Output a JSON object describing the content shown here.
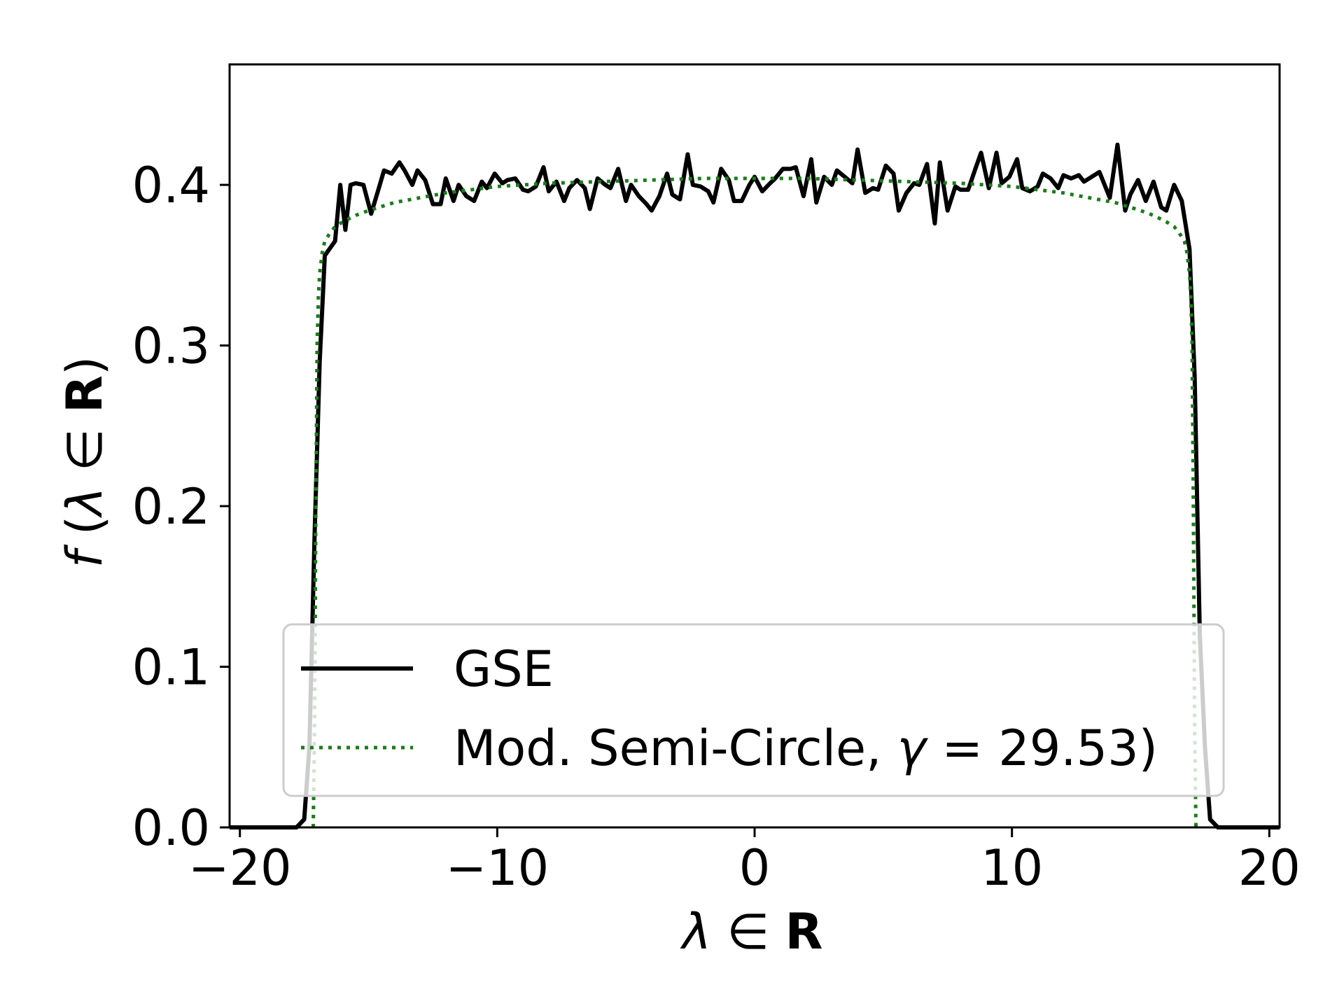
{
  "chart_data": {
    "type": "line",
    "xlabel": "λ ∈ R",
    "ylabel": "f (λ ∈ R)",
    "xlim": [
      -20.4,
      20.4
    ],
    "ylim": [
      0,
      0.475
    ],
    "xticks": [
      -20,
      -10,
      0,
      10,
      20
    ],
    "xtick_labels": [
      "−20",
      "−10",
      "0",
      "10",
      "20"
    ],
    "yticks": [
      0.0,
      0.1,
      0.2,
      0.3,
      0.4
    ],
    "ytick_labels": [
      "0.0",
      "0.1",
      "0.2",
      "0.3",
      "0.4"
    ],
    "grid": false,
    "legend_position": "lower center",
    "series": [
      {
        "name": "GSE",
        "color": "#000000",
        "style": "solid",
        "x": [
          -20.4,
          -17.8,
          -17.5,
          -17.3,
          -17.1,
          -16.9,
          -16.7,
          -16.3,
          -16.1,
          -15.9,
          -15.7,
          -15.5,
          -15.2,
          -14.9,
          -14.6,
          -14.4,
          -14.1,
          -13.8,
          -13.6,
          -13.3,
          -13.1,
          -12.8,
          -12.5,
          -12.2,
          -12.0,
          -11.7,
          -11.5,
          -11.2,
          -10.9,
          -10.6,
          -10.4,
          -10.1,
          -9.8,
          -9.6,
          -9.3,
          -9.0,
          -8.8,
          -8.5,
          -8.2,
          -8.0,
          -7.7,
          -7.4,
          -7.2,
          -6.9,
          -6.6,
          -6.4,
          -6.1,
          -5.8,
          -5.6,
          -5.3,
          -5.0,
          -4.8,
          -4.5,
          -4.2,
          -4.0,
          -3.7,
          -3.4,
          -3.2,
          -2.9,
          -2.6,
          -2.4,
          -2.1,
          -1.8,
          -1.6,
          -1.3,
          -1.0,
          -0.8,
          -0.5,
          -0.2,
          0.0,
          0.3,
          0.6,
          0.8,
          1.1,
          1.4,
          1.6,
          1.9,
          2.2,
          2.4,
          2.7,
          3.0,
          3.2,
          3.5,
          3.8,
          4.0,
          4.3,
          4.6,
          4.8,
          5.1,
          5.4,
          5.6,
          5.9,
          6.2,
          6.4,
          6.7,
          7.0,
          7.2,
          7.5,
          7.8,
          8.0,
          8.3,
          8.6,
          8.8,
          9.1,
          9.4,
          9.6,
          9.9,
          10.2,
          10.4,
          10.7,
          11.0,
          11.2,
          11.5,
          11.8,
          12.0,
          12.3,
          12.6,
          12.8,
          13.4,
          13.8,
          14.1,
          14.4,
          14.6,
          14.9,
          15.2,
          15.5,
          15.8,
          16.0,
          16.3,
          16.6,
          16.9,
          17.1,
          17.3,
          17.5,
          17.7,
          18.0,
          20.4
        ],
        "y": [
          0.0,
          0.0,
          0.005,
          0.05,
          0.18,
          0.29,
          0.356,
          0.365,
          0.4,
          0.372,
          0.4,
          0.401,
          0.4,
          0.382,
          0.398,
          0.409,
          0.407,
          0.414,
          0.409,
          0.4,
          0.409,
          0.403,
          0.388,
          0.388,
          0.404,
          0.39,
          0.4,
          0.393,
          0.39,
          0.402,
          0.398,
          0.407,
          0.401,
          0.403,
          0.404,
          0.397,
          0.396,
          0.399,
          0.411,
          0.396,
          0.402,
          0.39,
          0.398,
          0.403,
          0.398,
          0.385,
          0.404,
          0.4,
          0.398,
          0.41,
          0.39,
          0.4,
          0.393,
          0.388,
          0.384,
          0.393,
          0.407,
          0.394,
          0.391,
          0.419,
          0.4,
          0.399,
          0.396,
          0.389,
          0.41,
          0.403,
          0.39,
          0.39,
          0.4,
          0.405,
          0.396,
          0.401,
          0.404,
          0.41,
          0.41,
          0.411,
          0.393,
          0.416,
          0.389,
          0.405,
          0.4,
          0.409,
          0.405,
          0.401,
          0.422,
          0.395,
          0.398,
          0.397,
          0.412,
          0.407,
          0.384,
          0.395,
          0.401,
          0.4,
          0.413,
          0.376,
          0.414,
          0.384,
          0.399,
          0.397,
          0.397,
          0.411,
          0.42,
          0.398,
          0.42,
          0.401,
          0.405,
          0.416,
          0.398,
          0.396,
          0.399,
          0.407,
          0.404,
          0.398,
          0.406,
          0.404,
          0.406,
          0.402,
          0.408,
          0.392,
          0.425,
          0.384,
          0.394,
          0.403,
          0.39,
          0.402,
          0.386,
          0.384,
          0.4,
          0.39,
          0.36,
          0.28,
          0.12,
          0.05,
          0.005,
          0.0,
          0.0
        ],
        "linewidth": 6
      },
      {
        "name": "Mod. Semi-Circle, γ = 29.53)",
        "color": "#1a7d1a",
        "style": "dotted",
        "x": [
          -17.15,
          -17.1,
          -17.05,
          -17.0,
          -16.95,
          -16.9,
          -16.8,
          -16.7,
          -16.5,
          -16.3,
          -16.0,
          -15.5,
          -15.0,
          -14.0,
          -13.0,
          -12.0,
          -10.0,
          -8.0,
          -6.0,
          -4.0,
          -2.0,
          0.0,
          2.0,
          4.0,
          6.0,
          8.0,
          10.0,
          12.0,
          13.0,
          14.0,
          15.0,
          15.5,
          16.0,
          16.3,
          16.5,
          16.7,
          16.8,
          16.9,
          16.95,
          17.0,
          17.05,
          17.1,
          17.15
        ],
        "y": [
          0.0,
          0.06,
          0.2,
          0.3,
          0.33,
          0.345,
          0.358,
          0.365,
          0.37,
          0.374,
          0.377,
          0.381,
          0.384,
          0.389,
          0.392,
          0.395,
          0.399,
          0.401,
          0.402,
          0.403,
          0.404,
          0.404,
          0.404,
          0.403,
          0.402,
          0.401,
          0.399,
          0.395,
          0.392,
          0.389,
          0.384,
          0.381,
          0.377,
          0.374,
          0.37,
          0.365,
          0.358,
          0.345,
          0.33,
          0.3,
          0.2,
          0.06,
          0.0
        ],
        "linewidth": 5
      }
    ],
    "legend": {
      "entries": [
        "GSE",
        "Mod. Semi-Circle, γ = 29.53)"
      ]
    }
  }
}
